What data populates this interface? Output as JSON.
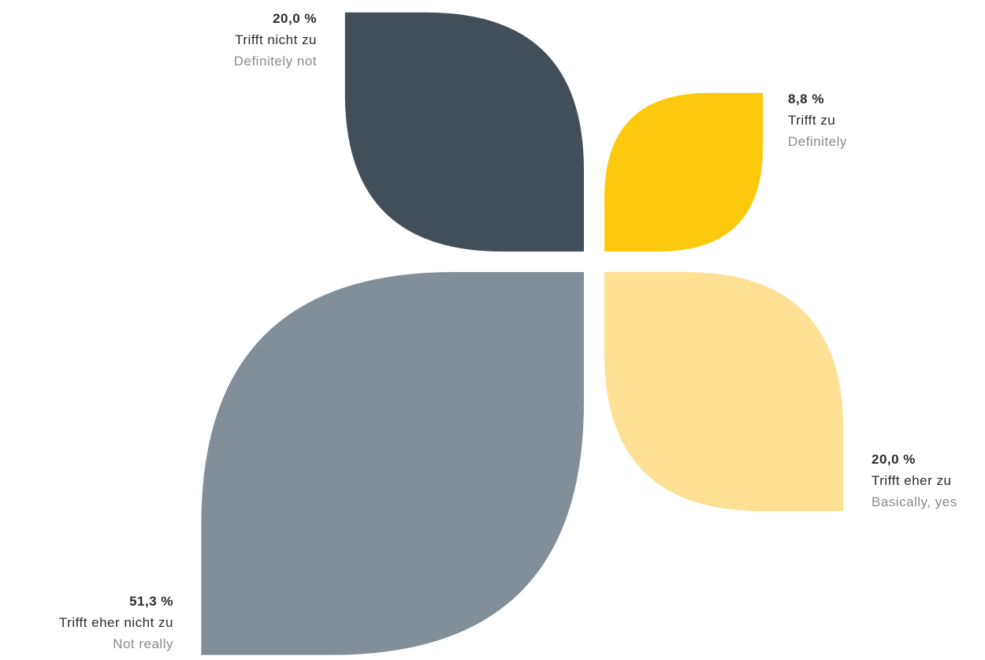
{
  "chart_data": {
    "type": "pie",
    "categories": [
      "Trifft nicht zu",
      "Trifft zu",
      "Trifft eher nicht zu",
      "Trifft eher zu"
    ],
    "values": [
      20.0,
      8.8,
      51.3,
      20.0
    ],
    "slices": [
      {
        "percent_label": "20,0 %",
        "label_de": "Trifft nicht zu",
        "label_en": "Definitely not",
        "value": 20.0,
        "color": "#434f58"
      },
      {
        "percent_label": "8,8 %",
        "label_de": "Trifft zu",
        "label_en": "Definitely",
        "value": 8.8,
        "color": "#fdc90c"
      },
      {
        "percent_label": "51,3 %",
        "label_de": "Trifft eher nicht zu",
        "label_en": "Not really",
        "value": 51.3,
        "color": "#828f98"
      },
      {
        "percent_label": "20,0 %",
        "label_de": "Trifft eher zu",
        "label_en": "Basically, yes",
        "value": 20.0,
        "color": "#fde093"
      }
    ],
    "title": "",
    "legend": "none"
  }
}
